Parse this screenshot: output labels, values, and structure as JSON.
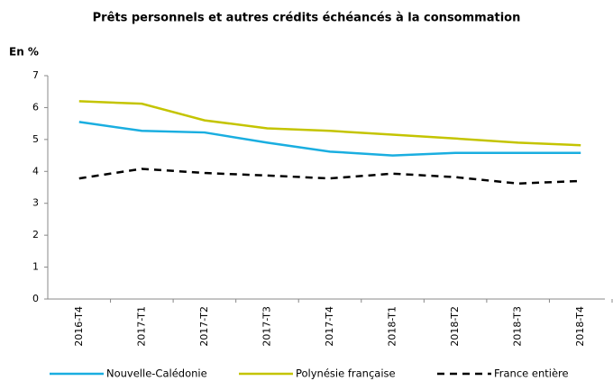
{
  "chart_data": {
    "type": "line",
    "title": "Prêts personnels et autres crédits échéancés à la consommation",
    "y_label": "En %",
    "categories": [
      "2016-T4",
      "2017-T1",
      "2017-T2",
      "2017-T3",
      "2017-T4",
      "2018-T1",
      "2018-T2",
      "2018-T3",
      "2018-T4"
    ],
    "series": [
      {
        "name": "Nouvelle-Calédonie",
        "color": "#1aaee0",
        "line_style": "solid",
        "values": [
          5.55,
          5.27,
          5.22,
          4.9,
          4.62,
          4.5,
          4.58,
          4.58,
          4.58
        ]
      },
      {
        "name": "Polynésie française",
        "color": "#c4c400",
        "line_style": "solid",
        "values": [
          6.2,
          6.12,
          5.6,
          5.35,
          5.27,
          5.15,
          5.03,
          4.9,
          4.82
        ]
      },
      {
        "name": "France entière",
        "color": "#000000",
        "line_style": "dashed",
        "values": [
          3.78,
          4.08,
          3.95,
          3.87,
          3.78,
          3.93,
          3.82,
          3.62,
          3.7
        ]
      }
    ],
    "ylim": [
      0,
      7
    ],
    "yticks": [
      0,
      1,
      2,
      3,
      4,
      5,
      6,
      7
    ],
    "grid": false,
    "legend": "bottom"
  }
}
